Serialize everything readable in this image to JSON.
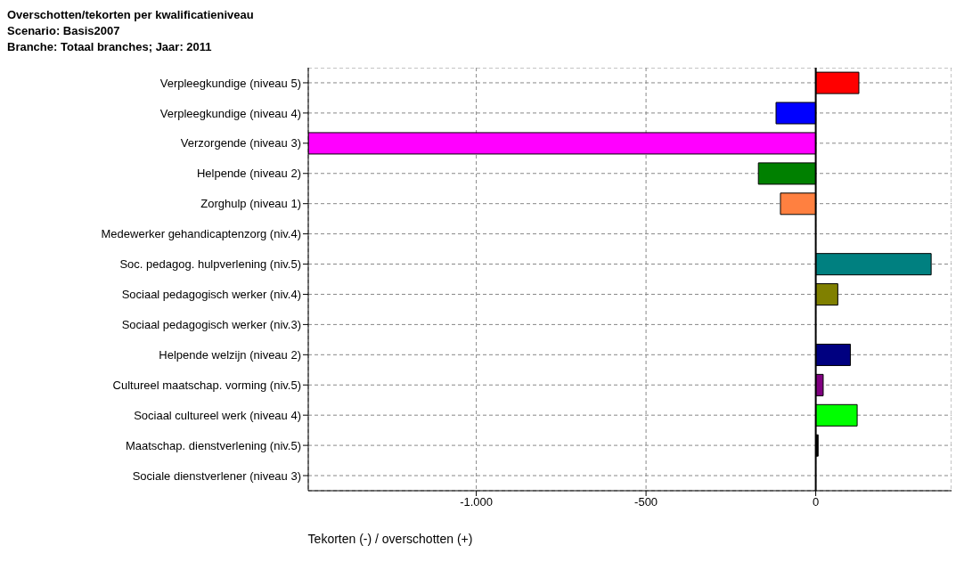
{
  "chart_data": {
    "type": "bar",
    "orientation": "horizontal",
    "title": "Overschotten/tekorten per kwalificatieniveau",
    "subtitle": "Scenario: Basis2007\nBranche: Totaal branches; Jaar: 2011",
    "xlabel": "Tekorten (-) / overschotten (+)",
    "categories": [
      "Verpleegkundige (niveau 5)",
      "Verpleegkundige (niveau 4)",
      "Verzorgende (niveau 3)",
      "Helpende (niveau 2)",
      "Zorghulp (niveau 1)",
      "Medewerker gehandicaptenzorg (niv.4)",
      "Soc. pedagog. hulpverlening (niv.5)",
      "Sociaal pedagogisch werker (niv.4)",
      "Sociaal pedagogisch werker (niv.3)",
      "Helpende welzijn (niveau 2)",
      "Cultureel maatschap. vorming (niv.5)",
      "Sociaal cultureel werk (niveau 4)",
      "Maatschap. dienstverlening (niv.5)",
      "Sociale dienstverlener (niveau 3)"
    ],
    "values": [
      127,
      -117,
      -1495,
      -169,
      -104,
      null,
      340,
      65,
      null,
      102,
      22,
      122,
      7,
      null
    ],
    "colors": [
      "#ff0000",
      "#0000ff",
      "#ff00ff",
      "#008000",
      "#ff8040",
      "#ff0000",
      "#008080",
      "#808000",
      "#c0c0c0",
      "#000080",
      "#800080",
      "#00ff00",
      "#000000",
      "#fffacd"
    ],
    "xlim": [
      -1495,
      400
    ],
    "xticks": [
      {
        "value": -1000,
        "label": "-1.000"
      },
      -500,
      0
    ],
    "grid": true
  }
}
